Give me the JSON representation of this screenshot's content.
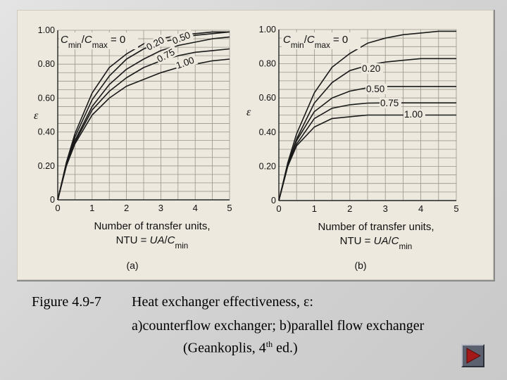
{
  "caption": {
    "figure_label": "Figure 4.9-7",
    "line1": "Heat exchanger effectiveness, ε:",
    "line2": "a)counterflow exchanger; b)parallel flow exchanger",
    "line3_prefix": "(Geankoplis, 4",
    "line3_sup": "th",
    "line3_suffix": " ed.)"
  },
  "chart_data": [
    {
      "type": "line",
      "panel_label": "(a)",
      "ylabel": "ε",
      "xlabel_line1": "Number of transfer units,",
      "xlabel_line2": "NTU = UA/Cmin",
      "xlim": [
        0,
        5
      ],
      "ylim": [
        0,
        1
      ],
      "x_ticks": [
        "0",
        "1",
        "2",
        "3",
        "4",
        "5"
      ],
      "y_ticks": [
        "0",
        "0.20",
        "0.40",
        "0.60",
        "0.80",
        "1.00"
      ],
      "grid": true,
      "legend_title": "Cmin/Cmax = 0",
      "series": [
        {
          "name": "0",
          "x": [
            0,
            0.25,
            0.5,
            1,
            1.5,
            2,
            2.5,
            3,
            3.5,
            4,
            4.5,
            5
          ],
          "values": [
            0,
            0.22,
            0.39,
            0.63,
            0.78,
            0.86,
            0.92,
            0.95,
            0.97,
            0.98,
            0.99,
            0.99
          ]
        },
        {
          "name": "0.20",
          "x": [
            0,
            0.25,
            0.5,
            1,
            1.5,
            2,
            2.5,
            3,
            3.5,
            4,
            4.5,
            5
          ],
          "values": [
            0,
            0.21,
            0.37,
            0.59,
            0.73,
            0.83,
            0.89,
            0.93,
            0.95,
            0.97,
            0.98,
            0.99
          ]
        },
        {
          "name": "0.50",
          "x": [
            0,
            0.25,
            0.5,
            1,
            1.5,
            2,
            2.5,
            3,
            3.5,
            4,
            4.5,
            5
          ],
          "values": [
            0,
            0.21,
            0.35,
            0.55,
            0.68,
            0.77,
            0.83,
            0.88,
            0.91,
            0.93,
            0.95,
            0.96
          ]
        },
        {
          "name": "0.75",
          "x": [
            0,
            0.25,
            0.5,
            1,
            1.5,
            2,
            2.5,
            3,
            3.5,
            4,
            4.5,
            5
          ],
          "values": [
            0,
            0.2,
            0.34,
            0.53,
            0.64,
            0.72,
            0.78,
            0.82,
            0.85,
            0.87,
            0.88,
            0.89
          ]
        },
        {
          "name": "1.00",
          "x": [
            0,
            0.25,
            0.5,
            1,
            1.5,
            2,
            2.5,
            3,
            3.5,
            4,
            4.5,
            5
          ],
          "values": [
            0,
            0.2,
            0.33,
            0.5,
            0.6,
            0.67,
            0.71,
            0.75,
            0.78,
            0.8,
            0.82,
            0.83
          ]
        }
      ]
    },
    {
      "type": "line",
      "panel_label": "(b)",
      "ylabel": "ε",
      "xlabel_line1": "Number of transfer units,",
      "xlabel_line2": "NTU = UA/Cmin",
      "xlim": [
        0,
        5
      ],
      "ylim": [
        0,
        1
      ],
      "x_ticks": [
        "0",
        "1",
        "2",
        "3",
        "4",
        "5"
      ],
      "y_ticks": [
        "0",
        "0.20",
        "0.40",
        "0.60",
        "0.80",
        "1.00"
      ],
      "grid": true,
      "legend_title": "Cmin/Cmax = 0",
      "series": [
        {
          "name": "0",
          "x": [
            0,
            0.25,
            0.5,
            1,
            1.5,
            2,
            2.5,
            3,
            3.5,
            4,
            4.5,
            5
          ],
          "values": [
            0,
            0.22,
            0.39,
            0.63,
            0.78,
            0.86,
            0.92,
            0.95,
            0.97,
            0.98,
            0.99,
            0.99
          ]
        },
        {
          "name": "0.20",
          "x": [
            0,
            0.25,
            0.5,
            1,
            1.5,
            2,
            2.5,
            3,
            3.5,
            4,
            4.5,
            5
          ],
          "values": [
            0,
            0.21,
            0.36,
            0.57,
            0.69,
            0.76,
            0.79,
            0.81,
            0.82,
            0.83,
            0.83,
            0.83
          ]
        },
        {
          "name": "0.50",
          "x": [
            0,
            0.25,
            0.5,
            1,
            1.5,
            2,
            2.5,
            3,
            3.5,
            4,
            4.5,
            5
          ],
          "values": [
            0,
            0.21,
            0.35,
            0.52,
            0.6,
            0.64,
            0.66,
            0.667,
            0.667,
            0.667,
            0.667,
            0.667
          ]
        },
        {
          "name": "0.75",
          "x": [
            0,
            0.25,
            0.5,
            1,
            1.5,
            2,
            2.5,
            3,
            3.5,
            4,
            4.5,
            5
          ],
          "values": [
            0,
            0.2,
            0.33,
            0.48,
            0.54,
            0.56,
            0.57,
            0.571,
            0.571,
            0.571,
            0.571,
            0.571
          ]
        },
        {
          "name": "1.00",
          "x": [
            0,
            0.25,
            0.5,
            1,
            1.5,
            2,
            2.5,
            3,
            3.5,
            4,
            4.5,
            5
          ],
          "values": [
            0,
            0.2,
            0.32,
            0.43,
            0.48,
            0.49,
            0.5,
            0.5,
            0.5,
            0.5,
            0.5,
            0.5
          ]
        }
      ]
    }
  ]
}
